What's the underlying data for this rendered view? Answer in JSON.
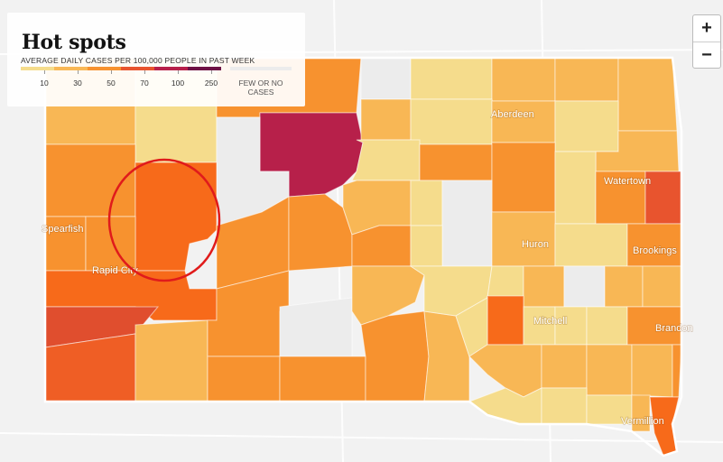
{
  "legend": {
    "title": "Hot spots",
    "subtitle": "AVERAGE DAILY CASES PER 100,000 PEOPLE IN PAST WEEK",
    "bins": [
      {
        "value": "10",
        "color": "#f5dc8c"
      },
      {
        "value": "30",
        "color": "#f8b755"
      },
      {
        "value": "50",
        "color": "#f7922f"
      },
      {
        "value": "70",
        "color": "#e8542e"
      },
      {
        "value": "100",
        "color": "#b7204a"
      },
      {
        "value": "250",
        "color": "#6e1245"
      }
    ],
    "no_data_label": "FEW OR NO CASES",
    "no_data_color": "#ececec"
  },
  "zoom": {
    "in_label": "+",
    "out_label": "−"
  },
  "cities": [
    {
      "name": "Aberdeen",
      "key": "aberdeen"
    },
    {
      "name": "Watertown",
      "key": "watertown"
    },
    {
      "name": "Spearfish",
      "key": "spearfish"
    },
    {
      "name": "Huron",
      "key": "huron"
    },
    {
      "name": "Brookings",
      "key": "brookings"
    },
    {
      "name": "Rapid City",
      "key": "rapid-city"
    },
    {
      "name": "Mitchell",
      "key": "mitchell"
    },
    {
      "name": "Brandon",
      "key": "brandon"
    },
    {
      "name": "Vermillion",
      "key": "vermillion"
    }
  ],
  "annotation": {
    "type": "red-circle",
    "color": "#e01b1b"
  },
  "state_border_color": "#ffffff"
}
